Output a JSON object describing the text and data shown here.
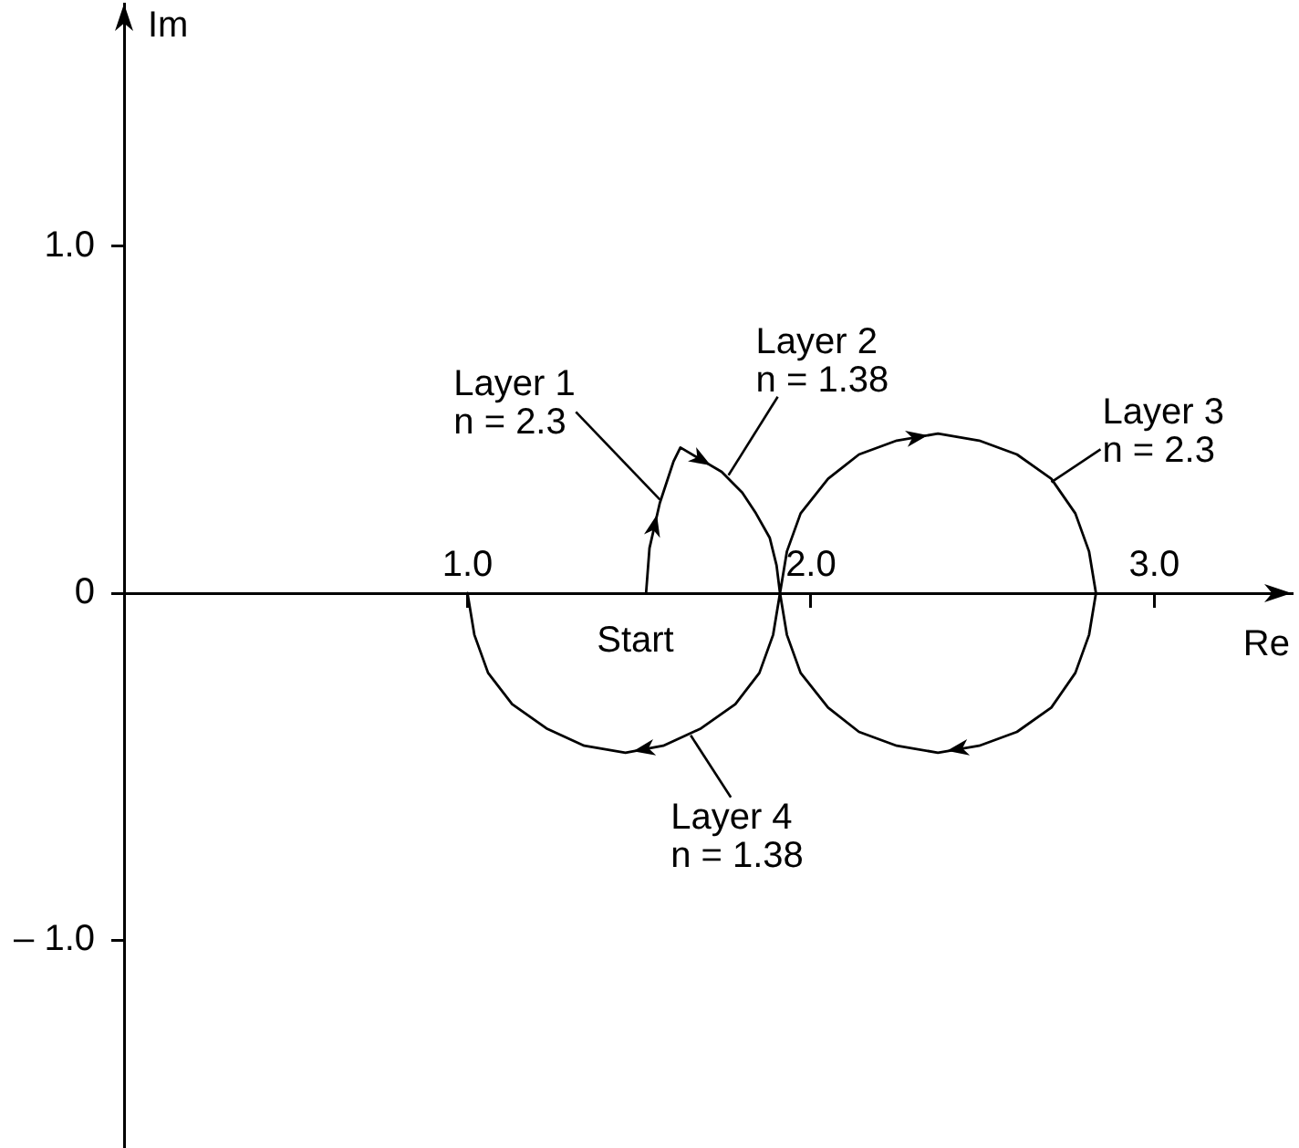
{
  "chart_data": {
    "type": "line",
    "xlabel": "Re",
    "ylabel": "Im",
    "xlim": [
      0,
      3.4
    ],
    "ylim": [
      -1.6,
      1.7
    ],
    "xticks": [
      {
        "value": 1,
        "label": "1.0"
      },
      {
        "value": 2,
        "label": "2.0"
      },
      {
        "value": 3,
        "label": "3.0"
      }
    ],
    "yticks": [
      {
        "value": -1,
        "label": "– 1.0"
      },
      0,
      {
        "value": 1,
        "label": "1.0"
      }
    ],
    "series": [
      {
        "color": "#000000",
        "x": [
          1.52,
          1.53,
          1.56,
          1.6,
          1.62,
          1.74,
          1.8,
          1.84,
          1.88,
          1.9,
          1.91,
          1.93,
          1.97,
          2.05,
          2.14,
          2.25,
          2.37,
          2.49,
          2.6,
          2.7,
          2.77,
          2.81,
          2.83,
          2.81,
          2.77,
          2.7,
          2.6,
          2.49,
          2.37,
          2.25,
          2.14,
          2.05,
          1.97,
          1.93,
          1.91,
          1.89,
          1.85,
          1.78,
          1.68,
          1.57,
          1.46,
          1.34,
          1.23,
          1.13,
          1.06,
          1.02,
          1.0
        ],
        "values": [
          0,
          0.13,
          0.26,
          0.38,
          0.42,
          0.35,
          0.29,
          0.23,
          0.16,
          0.08,
          0,
          0.12,
          0.23,
          0.33,
          0.4,
          0.44,
          0.46,
          0.44,
          0.4,
          0.33,
          0.23,
          0.12,
          0,
          -0.12,
          -0.23,
          -0.33,
          -0.4,
          -0.44,
          -0.46,
          -0.44,
          -0.4,
          -0.33,
          -0.23,
          -0.12,
          0,
          -0.12,
          -0.23,
          -0.32,
          -0.39,
          -0.44,
          -0.46,
          -0.44,
          -0.39,
          -0.32,
          -0.23,
          -0.12,
          0
        ]
      }
    ],
    "annotations": [
      {
        "text": "Layer 1\nn = 2.3",
        "x": 1.56,
        "y": 0.27
      },
      {
        "text": "Layer 2\nn = 1.38",
        "x": 1.76,
        "y": 0.34
      },
      {
        "text": "Layer 3\nn = 2.3",
        "x": 2.7,
        "y": 0.32
      },
      {
        "text": "Layer 4\nn = 1.38",
        "x": 1.65,
        "y": -0.41
      },
      {
        "text": "Start",
        "x": 1.52,
        "y": 0
      }
    ]
  }
}
